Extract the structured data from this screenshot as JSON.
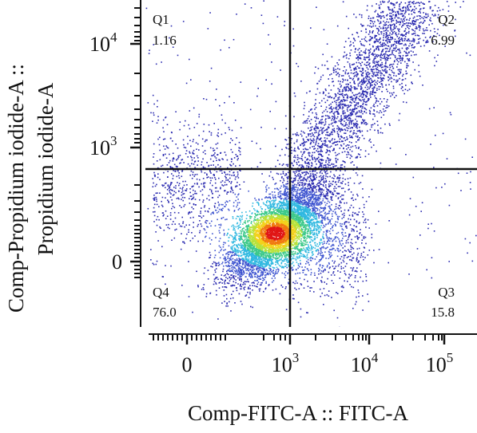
{
  "chart_data": {
    "type": "scatter",
    "subtype": "flow-cytometry quadrant density plot (pseudocolor)",
    "xlabel": "Comp-FITC-A :: FITC-A",
    "ylabel_line1": "Comp-Propidium iodide-A ::",
    "ylabel_line2": "Propidium iodide-A",
    "x_axis": {
      "scale": "biexponential",
      "ticks": [
        {
          "base": "0",
          "exp": ""
        },
        {
          "base": "10",
          "exp": "3"
        },
        {
          "base": "10",
          "exp": "4"
        },
        {
          "base": "10",
          "exp": "5"
        }
      ]
    },
    "y_axis": {
      "scale": "biexponential",
      "ticks": [
        {
          "base": "0",
          "exp": ""
        },
        {
          "base": "10",
          "exp": "3"
        },
        {
          "base": "10",
          "exp": "4"
        }
      ]
    },
    "quadrants": [
      {
        "name": "Q1",
        "value": "1.16",
        "position": "top-left"
      },
      {
        "name": "Q2",
        "value": "6.99",
        "position": "top-right"
      },
      {
        "name": "Q3",
        "value": "15.8",
        "position": "bottom-right"
      },
      {
        "name": "Q4",
        "value": "76.0",
        "position": "bottom-left"
      }
    ],
    "density_colors": [
      "#2b2bb0",
      "#3f55d0",
      "#2fb8e0",
      "#3cc98a",
      "#b7e23a",
      "#f3d11c",
      "#f07a10",
      "#e01616"
    ],
    "density_peak": {
      "x_decade": 2.55,
      "y_decade": 0.75
    },
    "grid": false,
    "legend": "none"
  }
}
